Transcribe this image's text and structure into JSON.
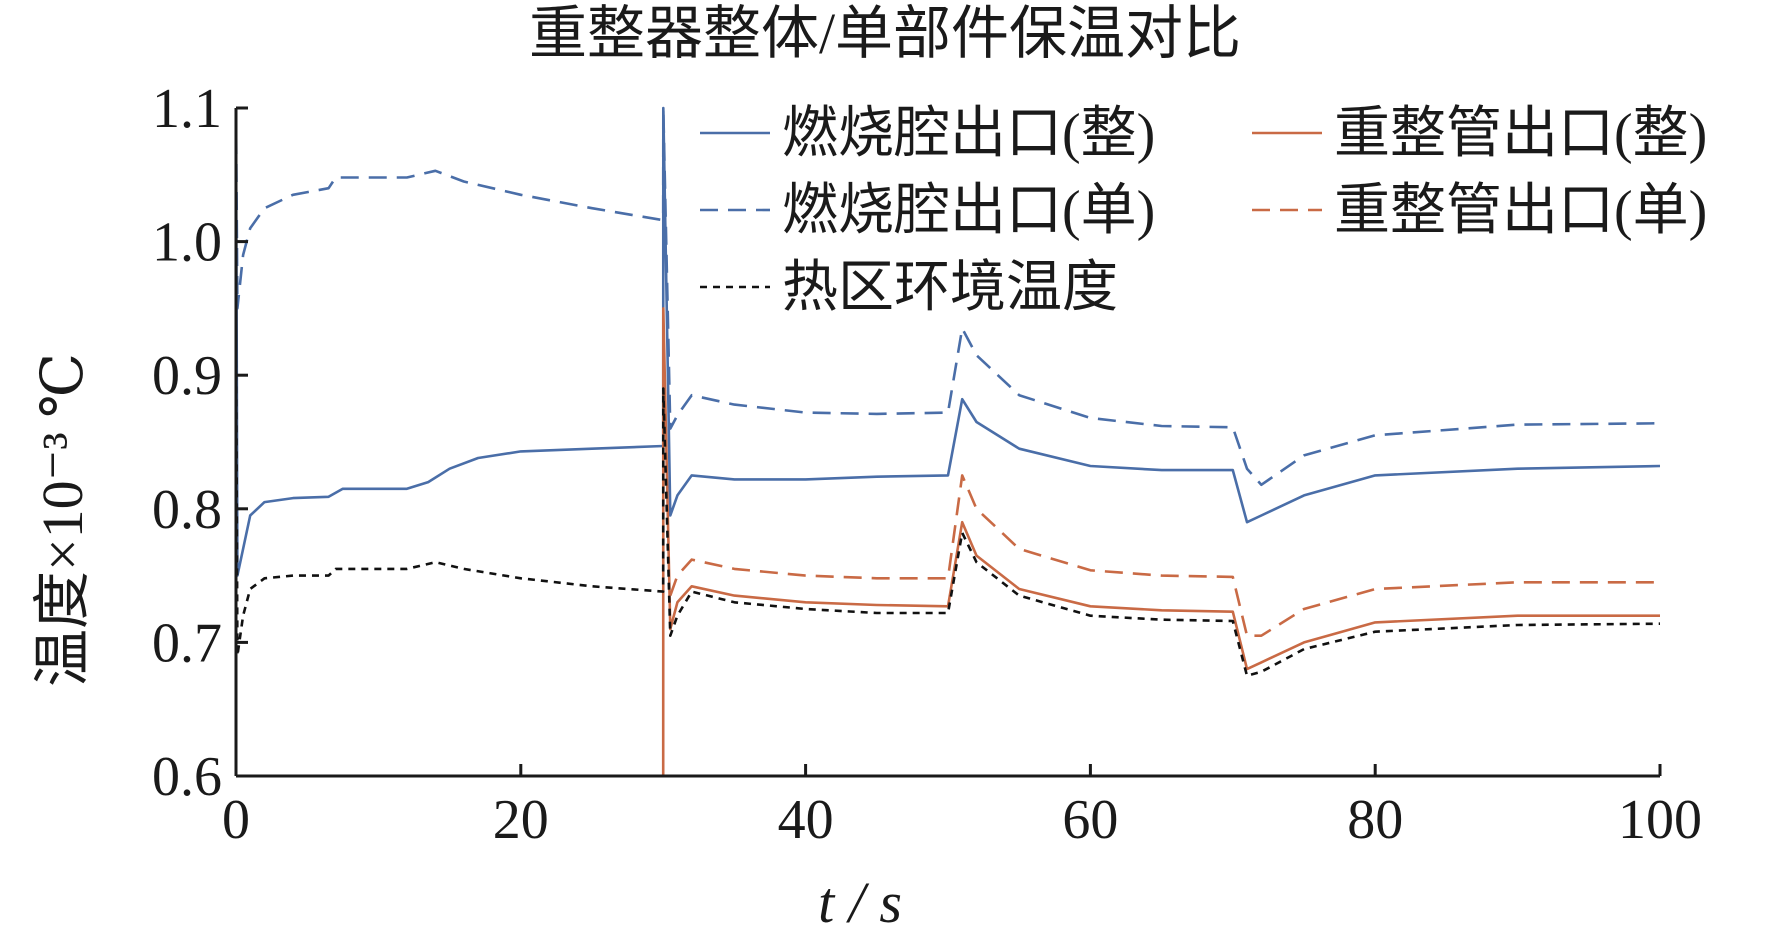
{
  "chart_data": {
    "type": "line",
    "title": "重整器整体/单部件保温对比",
    "xlabel": "t / s",
    "ylabel": "温度×10⁻³ ℃",
    "xlim": [
      0,
      100
    ],
    "ylim": [
      0.6,
      1.1
    ],
    "xticks": [
      "0",
      "20",
      "40",
      "60",
      "80",
      "100"
    ],
    "yticks": [
      "0.6",
      "0.7",
      "0.8",
      "0.9",
      "1.0",
      "1.1"
    ],
    "grid": false,
    "legend": "top-right",
    "series": [
      {
        "name": "燃烧腔出口(整)",
        "color": "#4a6ea8",
        "dash": "solid",
        "x": [
          0,
          0.1,
          0.5,
          1,
          2,
          4,
          6.5,
          7,
          7.5,
          10,
          12,
          13.5,
          15,
          17,
          20,
          25,
          30,
          30.01,
          30.5,
          31,
          32,
          35,
          40,
          45,
          50,
          51,
          52,
          55,
          60,
          65,
          70,
          71,
          72,
          75,
          80,
          90,
          100
        ],
        "y": [
          1.1,
          0.75,
          0.77,
          0.795,
          0.805,
          0.808,
          0.809,
          0.812,
          0.815,
          0.815,
          0.815,
          0.82,
          0.83,
          0.838,
          0.843,
          0.845,
          0.847,
          1.1,
          0.795,
          0.81,
          0.825,
          0.822,
          0.822,
          0.824,
          0.825,
          0.882,
          0.865,
          0.845,
          0.832,
          0.829,
          0.829,
          0.79,
          0.795,
          0.81,
          0.825,
          0.83,
          0.832
        ]
      },
      {
        "name": "重整管出口(整)",
        "color": "#c96a45",
        "dash": "solid",
        "x": [
          30,
          30.01,
          30.5,
          31,
          32,
          35,
          40,
          45,
          50,
          51,
          52,
          55,
          60,
          65,
          70,
          71,
          72,
          75,
          80,
          90,
          100
        ],
        "y": [
          0.6,
          0.95,
          0.71,
          0.73,
          0.742,
          0.735,
          0.73,
          0.728,
          0.727,
          0.79,
          0.765,
          0.74,
          0.727,
          0.724,
          0.723,
          0.68,
          0.685,
          0.7,
          0.715,
          0.72,
          0.72
        ]
      },
      {
        "name": "燃烧腔出口(单)",
        "color": "#4a6ea8",
        "dash": "dashed",
        "x": [
          0,
          0.1,
          0.5,
          1,
          2,
          4,
          6.5,
          7,
          7.5,
          10,
          12,
          14,
          16,
          20,
          25,
          30,
          30.01,
          30.5,
          31,
          32,
          35,
          40,
          45,
          50,
          51,
          52,
          55,
          60,
          65,
          70,
          71,
          72,
          75,
          80,
          90,
          100
        ],
        "y": [
          1.1,
          0.95,
          0.99,
          1.01,
          1.025,
          1.035,
          1.04,
          1.048,
          1.048,
          1.048,
          1.048,
          1.053,
          1.045,
          1.035,
          1.025,
          1.016,
          1.1,
          0.86,
          0.87,
          0.885,
          0.878,
          0.872,
          0.871,
          0.872,
          0.935,
          0.915,
          0.885,
          0.868,
          0.862,
          0.861,
          0.83,
          0.818,
          0.84,
          0.855,
          0.863,
          0.864
        ]
      },
      {
        "name": "重整管出口(单)",
        "color": "#c96a45",
        "dash": "dashed",
        "x": [
          30.5,
          31,
          32,
          35,
          40,
          45,
          50,
          51,
          52,
          55,
          60,
          65,
          70,
          71,
          72,
          75,
          80,
          90,
          100
        ],
        "y": [
          0.735,
          0.75,
          0.762,
          0.755,
          0.75,
          0.748,
          0.748,
          0.825,
          0.8,
          0.77,
          0.754,
          0.75,
          0.749,
          0.705,
          0.705,
          0.725,
          0.74,
          0.745,
          0.745
        ]
      },
      {
        "name": "热区环境温度",
        "color": "#111111",
        "dash": "dotted",
        "x": [
          0,
          0.1,
          0.5,
          1,
          2,
          4,
          6.5,
          7,
          7.5,
          10,
          12,
          14,
          16,
          20,
          25,
          30,
          30.01,
          30.5,
          31,
          32,
          35,
          40,
          45,
          50,
          51,
          52,
          55,
          60,
          65,
          70,
          71,
          72,
          75,
          80,
          90,
          100
        ],
        "y": [
          0.95,
          0.69,
          0.72,
          0.74,
          0.748,
          0.75,
          0.75,
          0.755,
          0.755,
          0.755,
          0.755,
          0.76,
          0.755,
          0.748,
          0.742,
          0.738,
          0.89,
          0.705,
          0.72,
          0.738,
          0.73,
          0.725,
          0.722,
          0.722,
          0.782,
          0.76,
          0.735,
          0.72,
          0.717,
          0.716,
          0.675,
          0.678,
          0.695,
          0.708,
          0.713,
          0.714
        ]
      }
    ]
  }
}
